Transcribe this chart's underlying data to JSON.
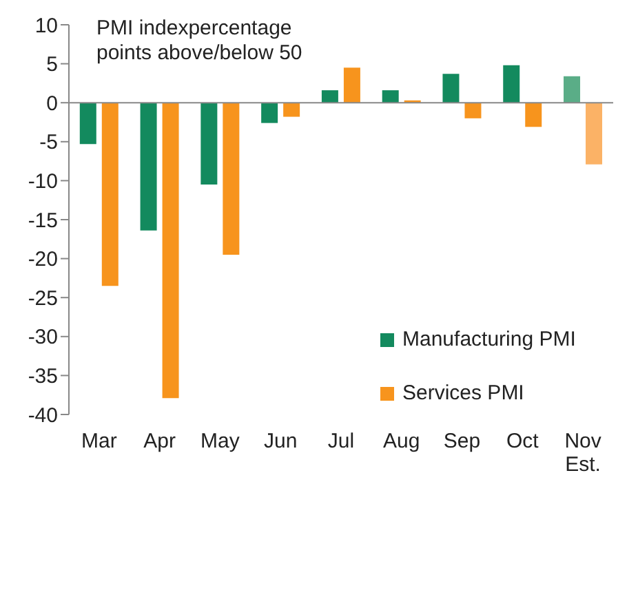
{
  "chart_data": {
    "type": "bar",
    "ylabel": "PMI indexpercentage points above/below 50",
    "categories": [
      "Mar",
      "Apr",
      "May",
      "Jun",
      "Jul",
      "Aug",
      "Sep",
      "Oct",
      "Nov Est."
    ],
    "series": [
      {
        "name": "Manufacturing PMI",
        "colors": [
          "#138a5e",
          "#138a5e",
          "#138a5e",
          "#138a5e",
          "#138a5e",
          "#138a5e",
          "#138a5e",
          "#138a5e",
          "#5aad87"
        ],
        "values": [
          -5.3,
          -16.4,
          -10.5,
          -2.6,
          1.6,
          1.6,
          3.7,
          4.8,
          3.4
        ]
      },
      {
        "name": "Services PMI",
        "colors": [
          "#f7941d",
          "#f7941d",
          "#f7941d",
          "#f7941d",
          "#f7941d",
          "#f7941d",
          "#f7941d",
          "#f7941d",
          "#fbb266"
        ],
        "values": [
          -23.5,
          -37.9,
          -19.5,
          -1.8,
          4.5,
          0.3,
          -2,
          -3.1,
          -7.9
        ]
      }
    ],
    "ylim": [
      -40,
      10
    ],
    "yticks": [
      -40,
      -35,
      -30,
      -25,
      -20,
      -15,
      -10,
      -5,
      0,
      5,
      10
    ],
    "grid": false,
    "legend": "right",
    "ref_lines": [
      {
        "axis": "y",
        "value": 0,
        "color": "#888888"
      }
    ]
  }
}
